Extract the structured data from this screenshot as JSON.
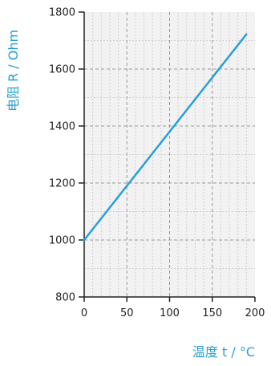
{
  "chart_data": {
    "type": "line",
    "title": "",
    "xlabel": "温度 t / °C",
    "ylabel": "电阻 R / Ohm",
    "xlim": [
      0,
      200
    ],
    "ylim": [
      800,
      1800
    ],
    "xticks": [
      0,
      50,
      100,
      150,
      200
    ],
    "yticks": [
      800,
      1000,
      1200,
      1400,
      1600,
      1800
    ],
    "grid": true,
    "legend": "none",
    "series": [
      {
        "x": [
          0,
          190
        ],
        "y": [
          1000,
          1722
        ]
      }
    ],
    "colors": {
      "line": "#2a9fd6",
      "label": "#2a9fd6",
      "axis": "#222222",
      "grid_major": "#9a9a9a",
      "grid_minor": "#d0d0d0",
      "plot_bg": "#f2f2f2"
    }
  }
}
